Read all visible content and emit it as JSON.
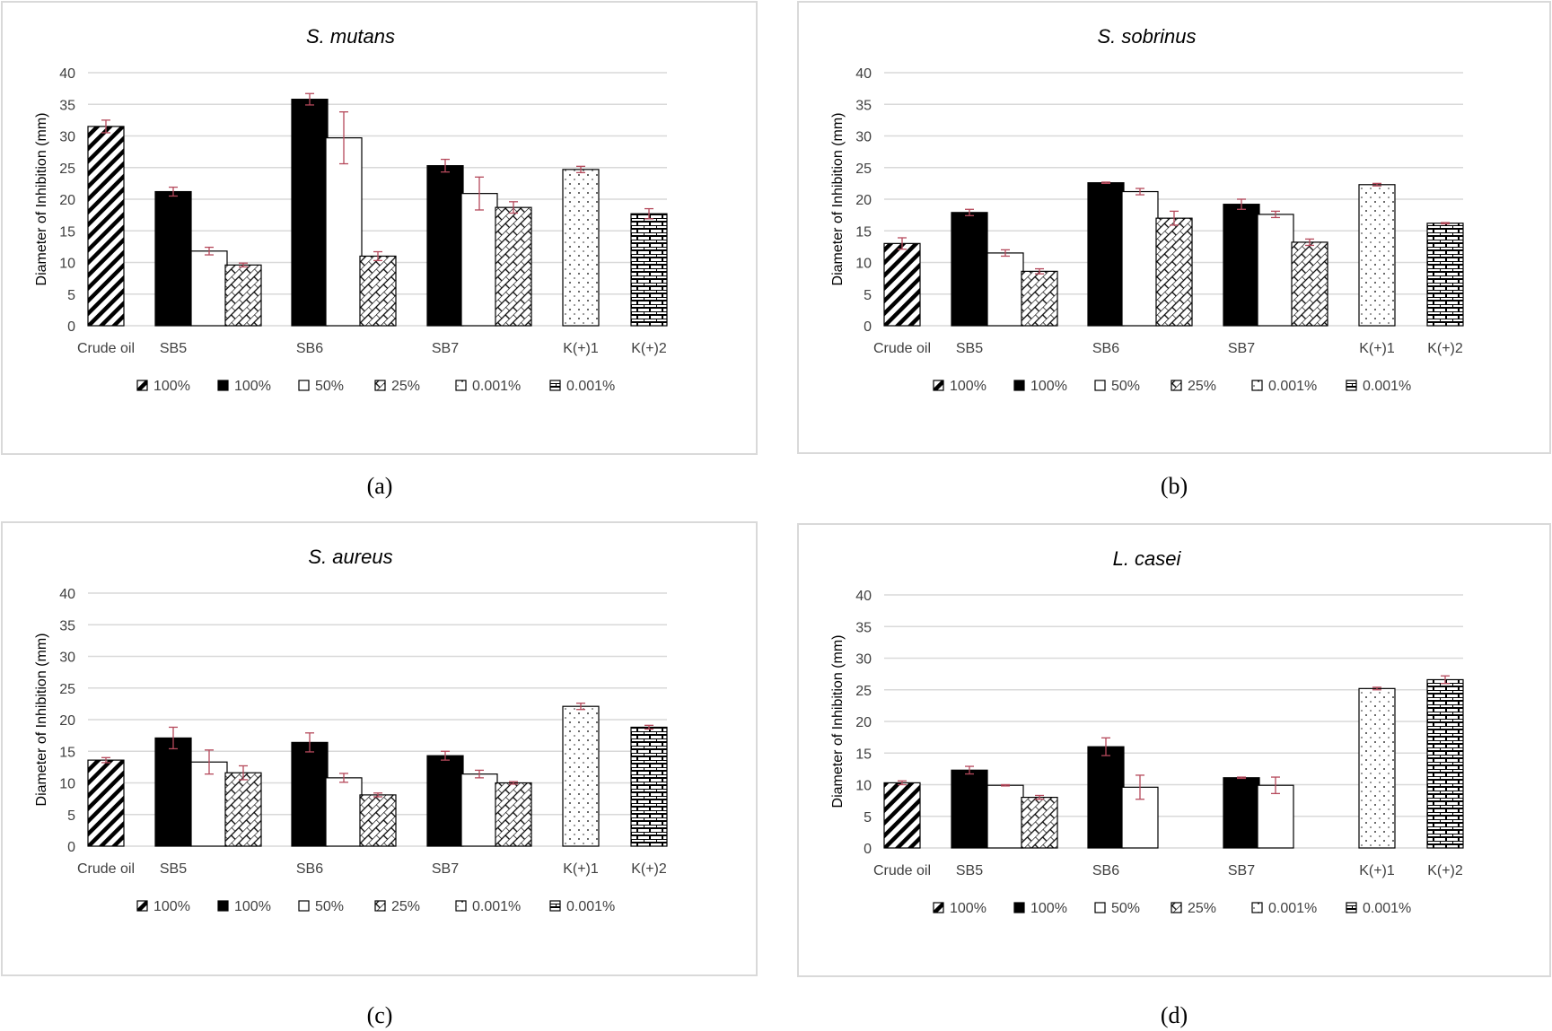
{
  "figure": {
    "captions": [
      "(a)",
      "(b)",
      "(c)",
      "(d)"
    ]
  },
  "chart_data": [
    {
      "type": "bar",
      "title": "S. mutans",
      "xlabel": "",
      "ylabel": "Diameter of Inhibition (mm)",
      "ylim": [
        0,
        40
      ],
      "yticks": [
        0,
        5,
        10,
        15,
        20,
        25,
        30,
        35,
        40
      ],
      "grid": true,
      "legend_position": "bottom",
      "categories": [
        "Crude oil",
        "SB5",
        "SB6",
        "SB7",
        "K(+)1",
        "K(+)2"
      ],
      "legend": [
        {
          "label": "100%",
          "pattern": "diagonal-stripes"
        },
        {
          "label": "100%",
          "pattern": "solid-black"
        },
        {
          "label": "50%",
          "pattern": "white"
        },
        {
          "label": "25%",
          "pattern": "diagonal-brick"
        },
        {
          "label": "0.001%",
          "pattern": "dots"
        },
        {
          "label": "0.001%",
          "pattern": "brick"
        }
      ],
      "bars": [
        {
          "category": "Crude oil",
          "series": 0,
          "value": 31.5,
          "error": 1.0
        },
        {
          "category": "SB5",
          "series": 1,
          "value": 21.2,
          "error": 0.7
        },
        {
          "category": "SB5",
          "series": 2,
          "value": 11.8,
          "error": 0.6
        },
        {
          "category": "SB5",
          "series": 3,
          "value": 9.6,
          "error": 0.3
        },
        {
          "category": "SB6",
          "series": 1,
          "value": 35.8,
          "error": 0.9
        },
        {
          "category": "SB6",
          "series": 2,
          "value": 29.7,
          "error": 4.1
        },
        {
          "category": "SB6",
          "series": 3,
          "value": 11.0,
          "error": 0.7
        },
        {
          "category": "SB7",
          "series": 1,
          "value": 25.3,
          "error": 1.0
        },
        {
          "category": "SB7",
          "series": 2,
          "value": 20.9,
          "error": 2.6
        },
        {
          "category": "SB7",
          "series": 3,
          "value": 18.7,
          "error": 0.9
        },
        {
          "category": "K(+)1",
          "series": 4,
          "value": 24.7,
          "error": 0.5
        },
        {
          "category": "K(+)2",
          "series": 5,
          "value": 17.7,
          "error": 0.8
        }
      ]
    },
    {
      "type": "bar",
      "title": "S. sobrinus",
      "xlabel": "",
      "ylabel": "Diameter of Inhibition (mm)",
      "ylim": [
        0,
        40
      ],
      "yticks": [
        0,
        5,
        10,
        15,
        20,
        25,
        30,
        35,
        40
      ],
      "grid": true,
      "legend_position": "bottom",
      "categories": [
        "Crude oil",
        "SB5",
        "SB6",
        "SB7",
        "K(+)1",
        "K(+)2"
      ],
      "legend": [
        {
          "label": "100%",
          "pattern": "diagonal-stripes"
        },
        {
          "label": "100%",
          "pattern": "solid-black"
        },
        {
          "label": "50%",
          "pattern": "white"
        },
        {
          "label": "25%",
          "pattern": "diagonal-brick"
        },
        {
          "label": "0.001%",
          "pattern": "dots"
        },
        {
          "label": "0.001%",
          "pattern": "brick"
        }
      ],
      "bars": [
        {
          "category": "Crude oil",
          "series": 0,
          "value": 13.0,
          "error": 0.9
        },
        {
          "category": "SB5",
          "series": 1,
          "value": 17.9,
          "error": 0.5
        },
        {
          "category": "SB5",
          "series": 2,
          "value": 11.5,
          "error": 0.5
        },
        {
          "category": "SB5",
          "series": 3,
          "value": 8.6,
          "error": 0.4
        },
        {
          "category": "SB6",
          "series": 1,
          "value": 22.6,
          "error": 0.1
        },
        {
          "category": "SB6",
          "series": 2,
          "value": 21.2,
          "error": 0.5
        },
        {
          "category": "SB6",
          "series": 3,
          "value": 17.0,
          "error": 1.1
        },
        {
          "category": "SB7",
          "series": 1,
          "value": 19.2,
          "error": 0.8
        },
        {
          "category": "SB7",
          "series": 2,
          "value": 17.6,
          "error": 0.5
        },
        {
          "category": "SB7",
          "series": 3,
          "value": 13.2,
          "error": 0.5
        },
        {
          "category": "K(+)1",
          "series": 4,
          "value": 22.3,
          "error": 0.2
        },
        {
          "category": "K(+)2",
          "series": 5,
          "value": 16.2,
          "error": 0.1
        }
      ]
    },
    {
      "type": "bar",
      "title": "S. aureus",
      "xlabel": "",
      "ylabel": "Diameter of Inhibition (mm)",
      "ylim": [
        0,
        40
      ],
      "yticks": [
        0,
        5,
        10,
        15,
        20,
        25,
        30,
        35,
        40
      ],
      "grid": true,
      "legend_position": "bottom",
      "categories": [
        "Crude oil",
        "SB5",
        "SB6",
        "SB7",
        "K(+)1",
        "K(+)2"
      ],
      "legend": [
        {
          "label": "100%",
          "pattern": "diagonal-stripes"
        },
        {
          "label": "100%",
          "pattern": "solid-black"
        },
        {
          "label": "50%",
          "pattern": "white"
        },
        {
          "label": "25%",
          "pattern": "diagonal-brick"
        },
        {
          "label": "0.001%",
          "pattern": "dots"
        },
        {
          "label": "0.001%",
          "pattern": "brick"
        }
      ],
      "bars": [
        {
          "category": "Crude oil",
          "series": 0,
          "value": 13.6,
          "error": 0.4
        },
        {
          "category": "SB5",
          "series": 1,
          "value": 17.1,
          "error": 1.7
        },
        {
          "category": "SB5",
          "series": 2,
          "value": 13.3,
          "error": 1.9
        },
        {
          "category": "SB5",
          "series": 3,
          "value": 11.6,
          "error": 1.1
        },
        {
          "category": "SB6",
          "series": 1,
          "value": 16.4,
          "error": 1.5
        },
        {
          "category": "SB6",
          "series": 2,
          "value": 10.8,
          "error": 0.7
        },
        {
          "category": "SB6",
          "series": 3,
          "value": 8.1,
          "error": 0.3
        },
        {
          "category": "SB7",
          "series": 1,
          "value": 14.3,
          "error": 0.7
        },
        {
          "category": "SB7",
          "series": 2,
          "value": 11.4,
          "error": 0.6
        },
        {
          "category": "SB7",
          "series": 3,
          "value": 10.0,
          "error": 0.2
        },
        {
          "category": "K(+)1",
          "series": 4,
          "value": 22.1,
          "error": 0.5
        },
        {
          "category": "K(+)2",
          "series": 5,
          "value": 18.8,
          "error": 0.3
        }
      ]
    },
    {
      "type": "bar",
      "title": "L. casei",
      "xlabel": "",
      "ylabel": "Diameter of Inhibition (mm)",
      "ylim": [
        0,
        40
      ],
      "yticks": [
        0,
        5,
        10,
        15,
        20,
        25,
        30,
        35,
        40
      ],
      "grid": true,
      "legend_position": "bottom",
      "categories": [
        "Crude oil",
        "SB5",
        "SB6",
        "SB7",
        "K(+)1",
        "K(+)2"
      ],
      "legend": [
        {
          "label": "100%",
          "pattern": "diagonal-stripes"
        },
        {
          "label": "100%",
          "pattern": "solid-black"
        },
        {
          "label": "50%",
          "pattern": "white"
        },
        {
          "label": "25%",
          "pattern": "diagonal-brick"
        },
        {
          "label": "0.001%",
          "pattern": "dots"
        },
        {
          "label": "0.001%",
          "pattern": "brick"
        }
      ],
      "bars": [
        {
          "category": "Crude oil",
          "series": 0,
          "value": 10.3,
          "error": 0.3
        },
        {
          "category": "SB5",
          "series": 1,
          "value": 12.3,
          "error": 0.6
        },
        {
          "category": "SB5",
          "series": 2,
          "value": 9.9,
          "error": 0.1
        },
        {
          "category": "SB5",
          "series": 3,
          "value": 8.0,
          "error": 0.3
        },
        {
          "category": "SB6",
          "series": 1,
          "value": 16.0,
          "error": 1.4
        },
        {
          "category": "SB6",
          "series": 2,
          "value": 9.6,
          "error": 1.9
        },
        {
          "category": "SB7",
          "series": 1,
          "value": 11.1,
          "error": 0.1
        },
        {
          "category": "SB7",
          "series": 2,
          "value": 9.9,
          "error": 1.3
        },
        {
          "category": "K(+)1",
          "series": 4,
          "value": 25.2,
          "error": 0.2
        },
        {
          "category": "K(+)2",
          "series": 5,
          "value": 26.6,
          "error": 0.6
        }
      ]
    }
  ]
}
